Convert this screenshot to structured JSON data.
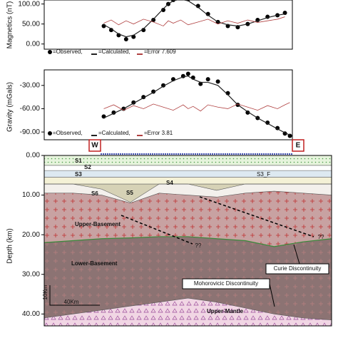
{
  "chart_data": [
    {
      "type": "line",
      "ylabel": "Magnetics (nT)",
      "xlim": [
        0,
        100
      ],
      "ylim": [
        -13,
        110
      ],
      "yticks": [
        {
          "value": 0,
          "label": "0.00"
        },
        {
          "value": 50,
          "label": "50.00"
        },
        {
          "value": 100,
          "label": "100.00"
        }
      ],
      "x": [
        24,
        27,
        30,
        33,
        36,
        40,
        44,
        48,
        50,
        52,
        55,
        58,
        62,
        66,
        70,
        74,
        78,
        82,
        86,
        90,
        94,
        97
      ],
      "series": [
        {
          "name": "=Observed,",
          "color": "#000000",
          "marker": "dot",
          "values": [
            45,
            35,
            22,
            12,
            18,
            35,
            60,
            85,
            100,
            110,
            115,
            112,
            95,
            75,
            55,
            45,
            42,
            50,
            60,
            68,
            72,
            78
          ]
        },
        {
          "name": "=Calculated,",
          "color": "#222222",
          "marker": "line",
          "values": [
            48,
            38,
            25,
            18,
            22,
            38,
            62,
            88,
            100,
            108,
            112,
            108,
            92,
            72,
            55,
            48,
            45,
            50,
            58,
            66,
            72,
            75
          ]
        },
        {
          "name": "=Error 7.609",
          "color": "#b04040",
          "marker": "line",
          "values": [
            52,
            60,
            48,
            58,
            50,
            62,
            55,
            45,
            58,
            52,
            60,
            48,
            55,
            62,
            50,
            58,
            52,
            60,
            54,
            58,
            62,
            68
          ]
        }
      ]
    },
    {
      "type": "line",
      "ylabel": "Gravity (mGals)",
      "xlim": [
        0,
        100
      ],
      "ylim": [
        -100,
        -10
      ],
      "yticks": [
        {
          "value": -30,
          "label": "-30.00"
        },
        {
          "value": -60,
          "label": "-60.00"
        },
        {
          "value": -90,
          "label": "-90.00"
        }
      ],
      "x": [
        24,
        28,
        32,
        36,
        40,
        44,
        48,
        52,
        56,
        58,
        60,
        63,
        66,
        70,
        74,
        78,
        82,
        86,
        90,
        94,
        97,
        99
      ],
      "series": [
        {
          "name": "=Observed,",
          "color": "#000000",
          "marker": "dot",
          "values": [
            -70,
            -65,
            -60,
            -52,
            -45,
            -38,
            -30,
            -22,
            -18,
            -15,
            -20,
            -28,
            -22,
            -25,
            -40,
            -55,
            -65,
            -72,
            -78,
            -85,
            -92,
            -95
          ]
        },
        {
          "name": "=Calculated,",
          "color": "#222222",
          "marker": "line",
          "values": [
            -72,
            -66,
            -60,
            -53,
            -46,
            -39,
            -31,
            -24,
            -19,
            -18,
            -22,
            -26,
            -26,
            -30,
            -42,
            -55,
            -64,
            -72,
            -79,
            -86,
            -91,
            -94
          ]
        },
        {
          "name": "=Error 3.81",
          "color": "#b04040",
          "marker": "line",
          "values": [
            -60,
            -55,
            -62,
            -56,
            -60,
            -54,
            -58,
            -62,
            -55,
            -60,
            -57,
            -63,
            -55,
            -58,
            -60,
            -54,
            -58,
            -62,
            -56,
            -60,
            -55,
            -52
          ]
        }
      ]
    },
    {
      "type": "section",
      "ylabel": "Depth (km)",
      "xlim": [
        0,
        100
      ],
      "ylim": [
        0,
        43
      ],
      "yticks": [
        {
          "value": 0,
          "label": "0.00"
        },
        {
          "value": 10,
          "label": "10.00"
        },
        {
          "value": 20,
          "label": "20.00"
        },
        {
          "value": 30,
          "label": "30.00"
        },
        {
          "value": 40,
          "label": "40.00"
        }
      ],
      "x": [
        0,
        10,
        20,
        30,
        40,
        50,
        60,
        70,
        80,
        90,
        100
      ],
      "layers": [
        {
          "label": "S1",
          "color": "#e6f4dc",
          "depth": [
            2.5,
            2.5,
            2.5,
            2.5,
            2.5,
            2.5,
            2.5,
            2.5,
            2.5,
            2.5,
            2.5
          ]
        },
        {
          "label": "S2",
          "color": "#ffffff",
          "depth": [
            3.8,
            3.8,
            3.8,
            3.8,
            3.8,
            3.8,
            3.8,
            3.8,
            3.8,
            3.8,
            3.8
          ]
        },
        {
          "label": "S3",
          "color": "#dde9f1",
          "depth": [
            5.5,
            5.5,
            5.5,
            5.5,
            5.5,
            5.5,
            5.5,
            5.5,
            5.5,
            5.5,
            5.5
          ]
        },
        {
          "label": "S4",
          "color": "#f4f1d6",
          "depth": [
            7.2,
            7.2,
            7.2,
            7.2,
            7.2,
            7.2,
            7.2,
            7.2,
            7.2,
            7.2,
            7.2
          ]
        },
        {
          "label": "S5",
          "color": "#d6d2b6",
          "depth": [
            7.2,
            7.2,
            8.5,
            11.8,
            7.2,
            7.2,
            8.8,
            7.2,
            7.2,
            7.2,
            7.2
          ]
        },
        {
          "label": "S6",
          "color": "#f3f0ec",
          "depth": [
            9.5,
            9.5,
            10,
            12,
            9.5,
            10,
            10.5,
            9.5,
            9,
            9.5,
            10
          ]
        },
        {
          "label": "Upper-Basement",
          "color": "#c8a2a2",
          "depth": [
            22,
            21.5,
            21,
            20.8,
            20.5,
            20.5,
            21,
            21.5,
            23,
            21.8,
            21
          ]
        },
        {
          "label": "Lower-Basement",
          "color": "#8c7373",
          "depth": [
            41,
            40,
            39,
            38,
            37,
            36,
            37,
            38.5,
            40,
            41,
            41.5
          ]
        },
        {
          "label": "Upper-Mantle",
          "color": "#f1d6e4",
          "depth": [
            43,
            43,
            43,
            43,
            43,
            43,
            43,
            43,
            43,
            43,
            43
          ]
        }
      ],
      "annotations": [
        "S3_F",
        "??",
        "??",
        "Curie Discontinuity",
        "Mohorovicic Discontinuity",
        "10Km",
        "40Km",
        "W",
        "E"
      ]
    }
  ]
}
